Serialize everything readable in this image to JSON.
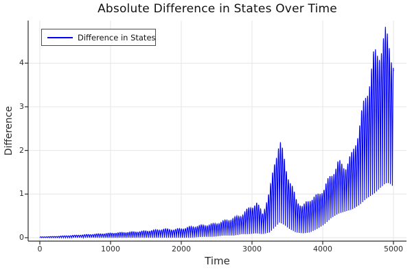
{
  "chart_data": {
    "type": "line",
    "title": "Absolute Difference in States Over Time",
    "xlabel": "Time",
    "ylabel": "Difference",
    "x_ticks": [
      0,
      1000,
      2000,
      3000,
      4000,
      5000
    ],
    "y_ticks": [
      0,
      1,
      2,
      3,
      4
    ],
    "xlim": [
      -170,
      5190
    ],
    "ylim": [
      -0.08,
      4.98
    ],
    "grid": true,
    "legend_position": "top-left",
    "colors": {
      "line": "#0000ff",
      "grid": "#e6e6e6",
      "spine": "#2b2b2b",
      "tick_text": "#2b2b2b",
      "background": "#ffffff",
      "legend_border": "#4a4a4a"
    },
    "series": [
      {
        "name": "Difference in States",
        "color": "#0000ff",
        "shape": "dense absolute-value oscillation whose amplitude envelope grows over time; local peak ~2.3 near t=3390, global max ~4.85 near t=4890",
        "waveform": {
          "x_start": 0,
          "x_end": 5000,
          "sample_step": 2,
          "period": 28,
          "modulation": {
            "base": 0.93,
            "components": [
              {
                "amp": 0.07,
                "period": 163,
                "phase": 1.57
              }
            ]
          },
          "envelope": [
            [
              0,
              0.02,
              0.0
            ],
            [
              200,
              0.03,
              0.0
            ],
            [
              400,
              0.05,
              0.0
            ],
            [
              600,
              0.07,
              0.0
            ],
            [
              800,
              0.09,
              0.0
            ],
            [
              1000,
              0.11,
              0.0
            ],
            [
              1200,
              0.13,
              0.0
            ],
            [
              1400,
              0.15,
              0.0
            ],
            [
              1600,
              0.18,
              0.0
            ],
            [
              1750,
              0.21,
              0.0
            ],
            [
              1900,
              0.2,
              0.0
            ],
            [
              2000,
              0.22,
              0.0
            ],
            [
              2150,
              0.27,
              0.0
            ],
            [
              2300,
              0.3,
              0.02
            ],
            [
              2450,
              0.33,
              0.02
            ],
            [
              2600,
              0.4,
              0.05
            ],
            [
              2750,
              0.48,
              0.05
            ],
            [
              2850,
              0.55,
              0.08
            ],
            [
              2950,
              0.7,
              0.08
            ],
            [
              3060,
              0.85,
              0.1
            ],
            [
              3150,
              0.6,
              0.08
            ],
            [
              3250,
              1.1,
              0.12
            ],
            [
              3330,
              2.0,
              0.25
            ],
            [
              3390,
              2.3,
              0.35
            ],
            [
              3450,
              1.95,
              0.3
            ],
            [
              3530,
              1.4,
              0.2
            ],
            [
              3620,
              0.95,
              0.12
            ],
            [
              3720,
              0.75,
              0.1
            ],
            [
              3820,
              0.95,
              0.12
            ],
            [
              3920,
              1.0,
              0.2
            ],
            [
              4020,
              1.2,
              0.3
            ],
            [
              4120,
              1.5,
              0.45
            ],
            [
              4220,
              1.8,
              0.55
            ],
            [
              4320,
              1.7,
              0.6
            ],
            [
              4420,
              2.0,
              0.65
            ],
            [
              4520,
              2.7,
              0.75
            ],
            [
              4620,
              3.5,
              0.9
            ],
            [
              4720,
              4.3,
              1.0
            ],
            [
              4820,
              4.6,
              1.15
            ],
            [
              4890,
              4.85,
              1.25
            ],
            [
              4940,
              4.7,
              1.25
            ],
            [
              4980,
              4.4,
              1.2
            ],
            [
              5000,
              4.2,
              1.15
            ]
          ]
        }
      }
    ]
  }
}
